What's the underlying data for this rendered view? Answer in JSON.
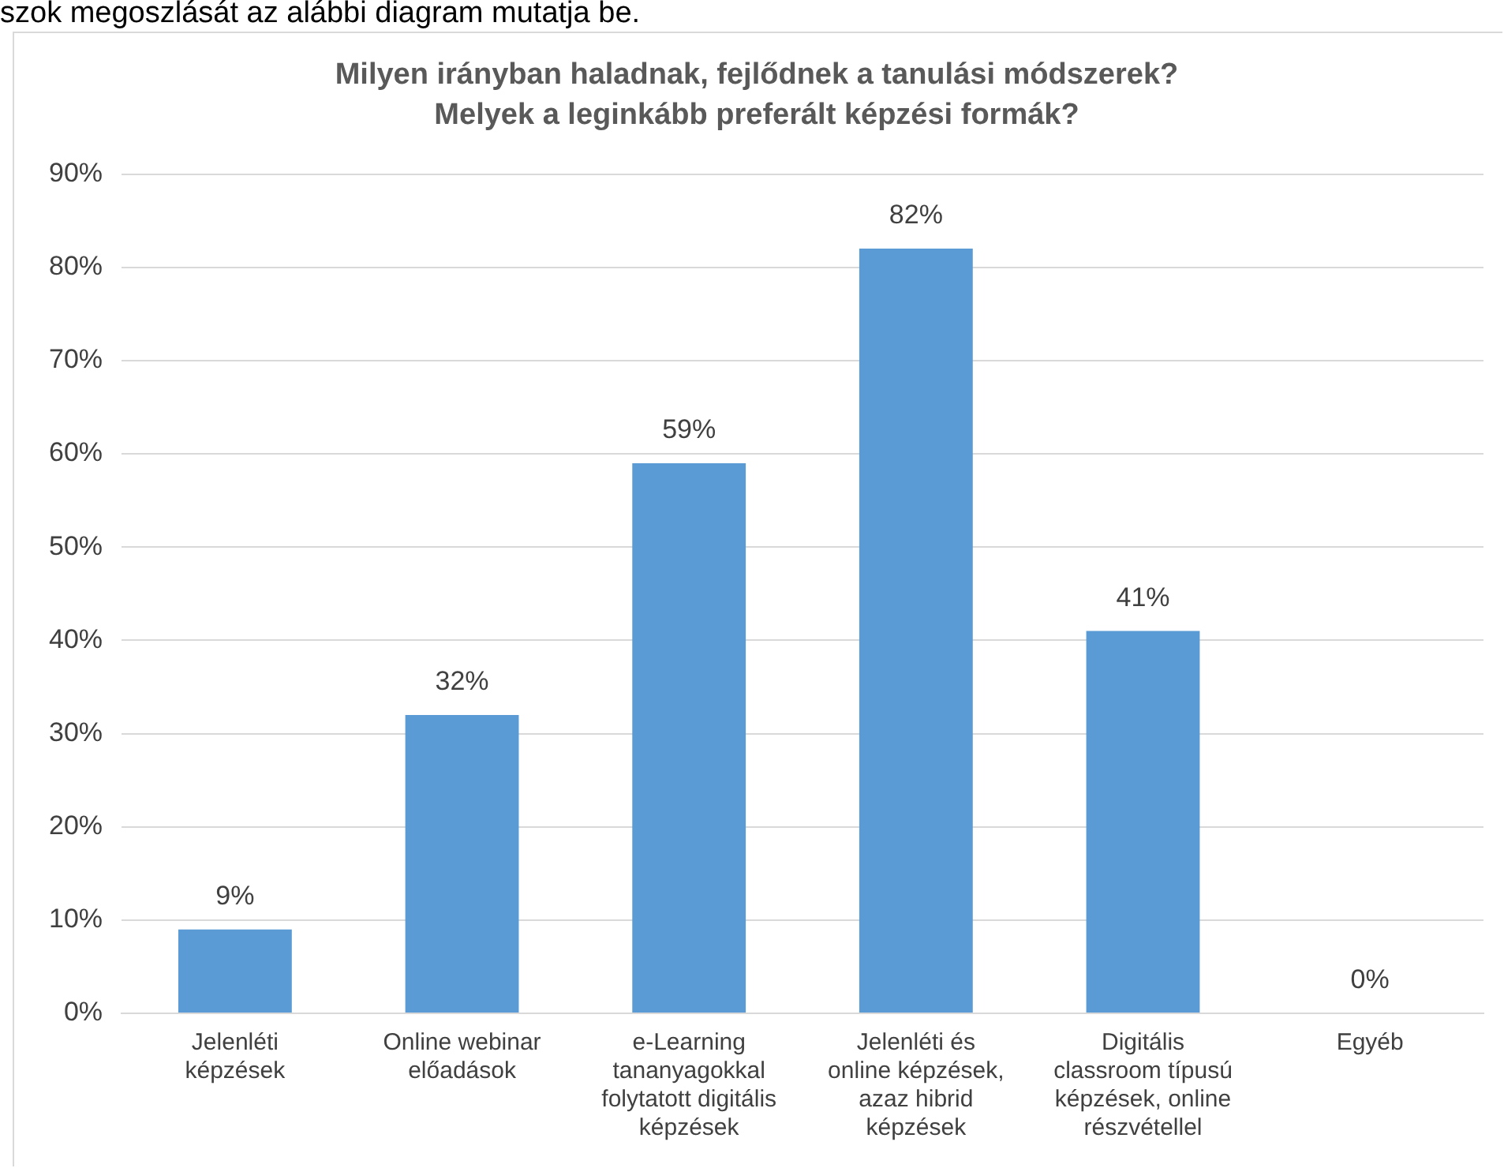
{
  "chart_data": {
    "type": "bar",
    "title": "Milyen irányban haladnak, fejlődnek a tanulási módszerek? Melyek a leginkább preferált képzési formák?",
    "annotations": [
      "szok megoszlását az alábbi diagram mutatja be."
    ],
    "categories": [
      "Jelenléti képzések",
      "Online webinar előadások",
      "e-Learning tananyagokkal folytatott digitális képzések",
      "Jelenléti és online képzések, azaz hibrid képzések",
      "Digitális classroom típusú képzések, online részvétellel",
      "Egyéb"
    ],
    "values": [
      9,
      32,
      59,
      82,
      41,
      0
    ],
    "value_labels": [
      "9%",
      "32%",
      "59%",
      "82%",
      "41%",
      "0%"
    ],
    "color": "#5b9bd5",
    "ylim": [
      0,
      90
    ],
    "yticks": [
      {
        "value": 0,
        "label": "0%"
      },
      {
        "value": 10,
        "label": "10%"
      },
      {
        "value": 20,
        "label": "20%"
      },
      {
        "value": 30,
        "label": "30%"
      },
      {
        "value": 40,
        "label": "40%"
      },
      {
        "value": 50,
        "label": "50%"
      },
      {
        "value": 60,
        "label": "60%"
      },
      {
        "value": 70,
        "label": "70%"
      },
      {
        "value": 80,
        "label": "80%"
      },
      {
        "value": 90,
        "label": "90%"
      }
    ],
    "grid": "y",
    "legend": false
  }
}
